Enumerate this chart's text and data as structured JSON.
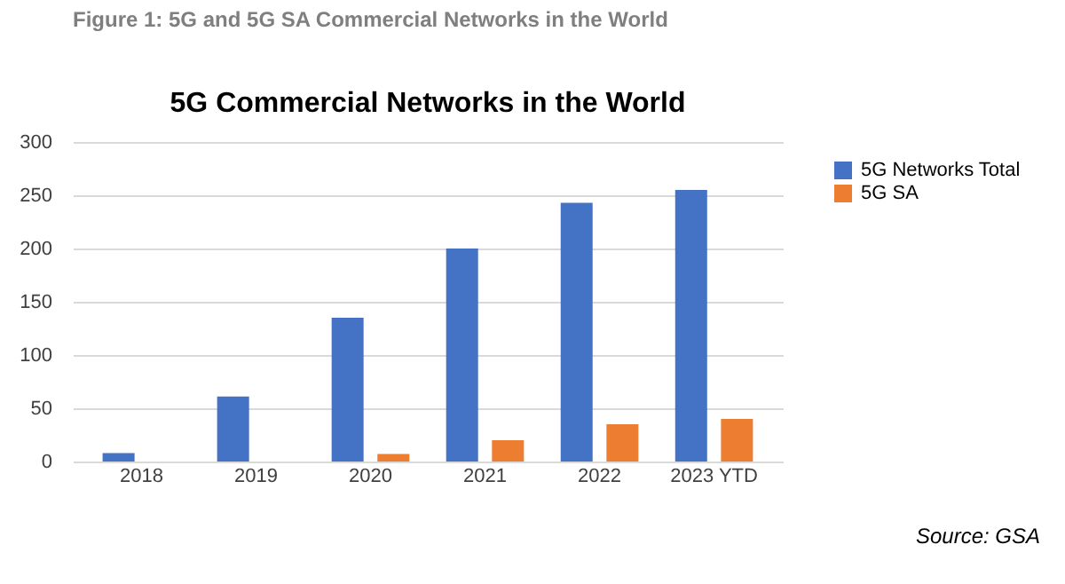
{
  "chart_data": {
    "type": "bar",
    "title": "Figure 1: 5G and 5G SA Commercial Networks in the World",
    "subtitle": "5G Commercial Networks in the World",
    "categories": [
      "2018",
      "2019",
      "2020",
      "2021",
      "2022",
      "2023 YTD"
    ],
    "series": [
      {
        "name": "5G Networks Total",
        "color": "#4472c4",
        "values": [
          8,
          61,
          135,
          200,
          243,
          255
        ]
      },
      {
        "name": "5G SA",
        "color": "#ed7d31",
        "values": [
          0,
          0,
          7,
          20,
          35,
          40
        ]
      }
    ],
    "ylim": [
      0,
      300
    ],
    "yticks": [
      0,
      50,
      100,
      150,
      200,
      250,
      300
    ],
    "grid": "y",
    "legend": "right",
    "annotations": [
      "Source: GSA"
    ]
  }
}
